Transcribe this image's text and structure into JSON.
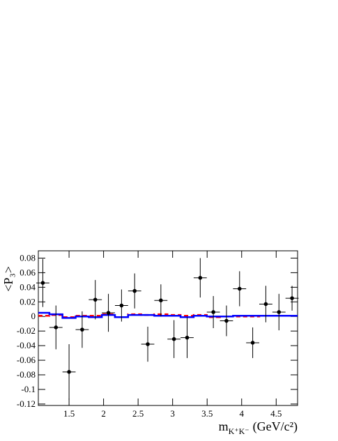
{
  "chart_data": {
    "type": "errorbar",
    "xlabel": {
      "text": "m",
      "sub": "K⁺K⁻",
      "unit": "(GeV/c²)"
    },
    "ylabel": "<P₃>",
    "xlim": [
      1.055,
      4.81
    ],
    "ylim": [
      -0.122,
      0.09
    ],
    "xticks": [
      1.5,
      2,
      2.5,
      3,
      3.5,
      4,
      4.5
    ],
    "yticks": [
      -0.12,
      -0.1,
      -0.08,
      -0.06,
      -0.04,
      -0.02,
      0,
      0.02,
      0.04,
      0.06,
      0.08
    ],
    "points": {
      "color": "#000000",
      "xerr": 0.095,
      "x": [
        1.12,
        1.31,
        1.5,
        1.69,
        1.88,
        2.07,
        2.26,
        2.45,
        2.64,
        2.83,
        3.02,
        3.21,
        3.4,
        3.59,
        3.78,
        3.97,
        4.16,
        4.35,
        4.54,
        4.73
      ],
      "values": [
        0.046,
        -0.015,
        -0.076,
        -0.018,
        0.023,
        0.005,
        0.015,
        0.035,
        -0.038,
        0.022,
        -0.031,
        -0.029,
        0.053,
        0.006,
        -0.006,
        0.038,
        -0.036,
        0.017,
        0.006,
        0.025
      ],
      "errors": [
        0.033,
        0.03,
        0.038,
        0.025,
        0.027,
        0.026,
        0.022,
        0.024,
        0.024,
        0.022,
        0.026,
        0.028,
        0.027,
        0.022,
        0.021,
        0.024,
        0.021,
        0.025,
        0.025,
        0.017
      ]
    },
    "bin_edges": [
      1.025,
      1.215,
      1.405,
      1.595,
      1.785,
      1.975,
      2.165,
      2.355,
      2.545,
      2.735,
      2.925,
      3.115,
      3.305,
      3.495,
      3.685,
      3.875,
      4.065,
      4.255,
      4.445,
      4.635,
      4.825
    ],
    "histograms": [
      {
        "color": "#ff0000",
        "dashed": true,
        "values": [
          0.001,
          0.002,
          -0.001,
          0.001,
          0.001,
          0.003,
          -0.001,
          0.003,
          0.002,
          0.003,
          0.002,
          0.001,
          0.002,
          -0.001,
          0,
          0,
          0,
          0.001,
          0.001,
          0.001
        ]
      },
      {
        "color": "#0000ff",
        "dashed": false,
        "values": [
          0.005,
          0.003,
          -0.002,
          0,
          -0.001,
          0.002,
          -0.001,
          0.002,
          0.002,
          0.001,
          0.001,
          -0.001,
          0.001,
          0,
          0,
          0.001,
          0.001,
          0.001,
          0.001,
          0.001
        ]
      }
    ]
  }
}
